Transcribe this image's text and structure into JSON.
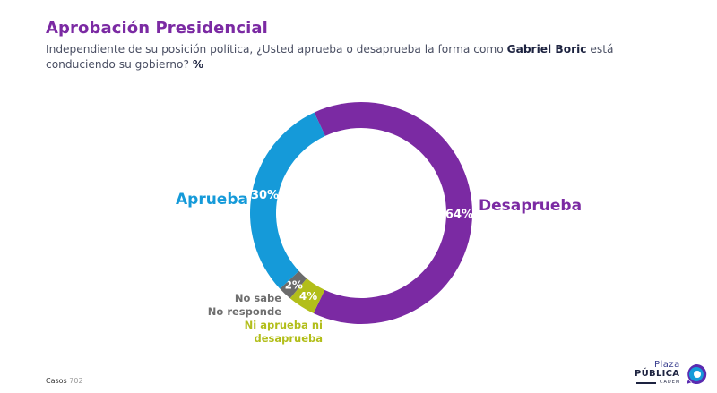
{
  "header": {
    "title": "Aprobación Presidencial",
    "subtitle_part1": "Independiente de su posición política, ¿Usted aprueba o desaprueba la forma como ",
    "subtitle_bold_name": "Gabriel Boric",
    "subtitle_part2": " está conduciendo su gobierno? ",
    "subtitle_unit": "%"
  },
  "chart_data": {
    "type": "pie",
    "variant": "donut",
    "title": "Aprobación Presidencial",
    "unit": "%",
    "start_angle_deg": -25,
    "direction": "clockwise",
    "slices": [
      {
        "key": "desaprueba",
        "label": "Desaprueba",
        "value": 64,
        "value_label": "64%",
        "color": "#7b2aa3"
      },
      {
        "key": "ni",
        "label": "Ni aprueba ni desaprueba",
        "value": 4,
        "value_label": "4%",
        "color": "#b2be1a"
      },
      {
        "key": "nosabe",
        "label": "No sabe No responde",
        "value": 2,
        "value_label": "2%",
        "color": "#6b6b6b"
      },
      {
        "key": "aprueba",
        "label": "Aprueba",
        "value": 30,
        "value_label": "30%",
        "color": "#159ad9"
      }
    ]
  },
  "labels": {
    "aprueba": "Aprueba",
    "desaprueba": "Desaprueba",
    "nosabe_line1": "No sabe",
    "nosabe_line2": "No responde",
    "ni_line1": "Ni aprueba ni",
    "ni_line2": "desaprueba"
  },
  "footer": {
    "casos_label": "Casos",
    "casos_value": "702"
  },
  "logo": {
    "line1": "Plaza",
    "line2": "PÚBLICA",
    "line3": "CADEM",
    "colors": {
      "primary": "#1d2340",
      "accent_blue": "#159ad9",
      "accent_purple": "#5a2bb0"
    }
  }
}
